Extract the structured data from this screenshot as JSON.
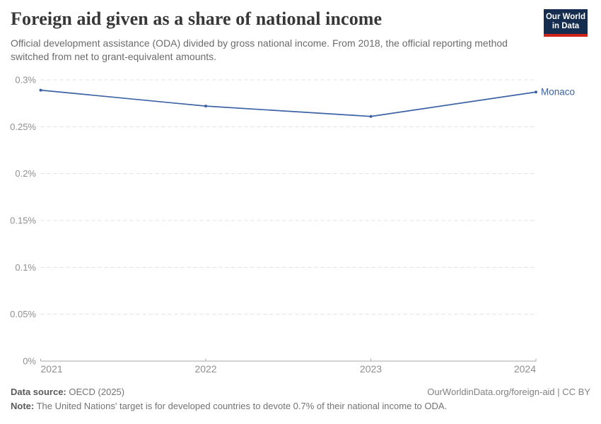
{
  "header": {
    "title": "Foreign aid given as a share of national income",
    "subtitle": "Official development assistance (ODA) divided by gross national income. From 2018, the official reporting method switched from net to grant-equivalent amounts.",
    "logo": {
      "line1": "Our World",
      "line2": "in Data"
    }
  },
  "chart_data": {
    "type": "line",
    "title": "Foreign aid given as a share of national income",
    "x": [
      2021,
      2022,
      2023,
      2024
    ],
    "xtick_labels": [
      "2021",
      "2022",
      "2023",
      "2024"
    ],
    "series": [
      {
        "name": "Monaco",
        "values": [
          0.289,
          0.272,
          0.261,
          0.287
        ]
      }
    ],
    "unit": "%",
    "ylim": [
      0,
      0.3
    ],
    "yticks": [
      0,
      0.05,
      0.1,
      0.15,
      0.2,
      0.25,
      0.3
    ],
    "ytick_labels": [
      "0%",
      "0.05%",
      "0.1%",
      "0.15%",
      "0.2%",
      "0.25%",
      "0.3%"
    ],
    "grid": "horizontal-dashed",
    "legend_position": "end-of-line-label",
    "end_label": "Monaco"
  },
  "footer": {
    "source_label": "Data source:",
    "source_value": " OECD (2025)",
    "note_label": "Note:",
    "note_value": " The United Nations' target is for developed countries to devote 0.7% of their national income to ODA.",
    "credit": "OurWorldinData.org/foreign-aid | CC BY"
  },
  "colors": {
    "line": "#3d62a5",
    "end_label_text": "#3d62a5",
    "gridline": "#e0e0e0",
    "axis_line": "#a9a9a9",
    "tick_label_text": "#8f8f8f",
    "logo_background": "#152d4f",
    "logo_stripe": "#d0241b"
  }
}
